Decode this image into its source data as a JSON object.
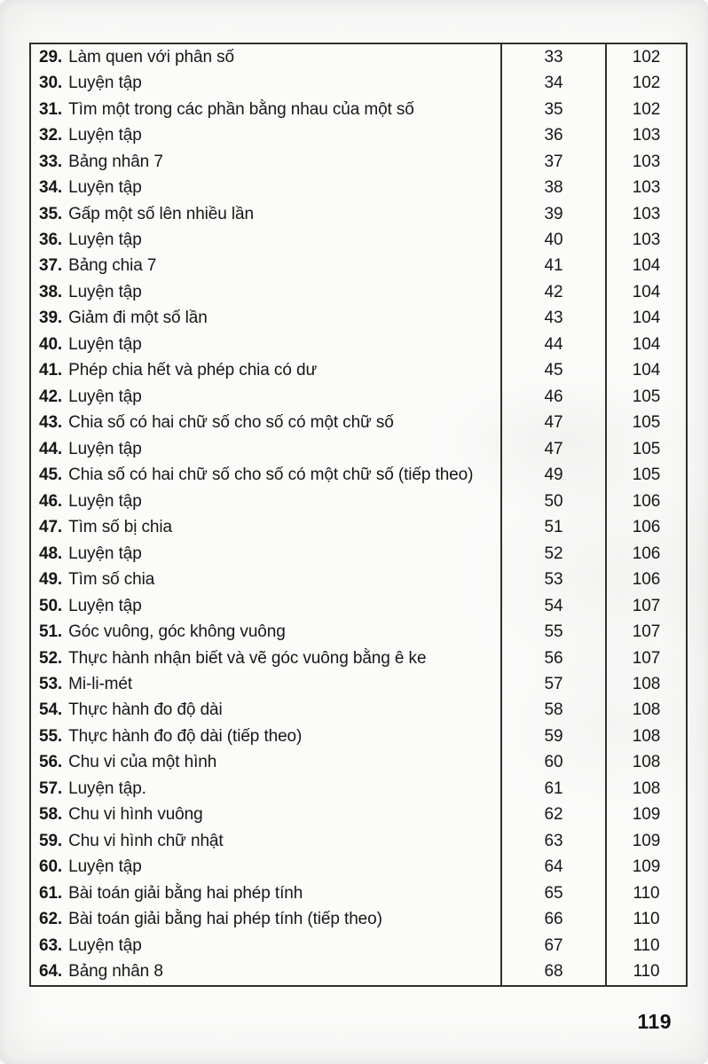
{
  "page": {
    "page_number": "119"
  },
  "table": {
    "rows": [
      {
        "num": "29.",
        "title": "Làm quen với phân số",
        "lesson_page": "33",
        "answer_page": "102"
      },
      {
        "num": "30.",
        "title": "Luyện tập",
        "lesson_page": "34",
        "answer_page": "102"
      },
      {
        "num": "31.",
        "title": "Tìm một trong các phần bằng nhau của một số",
        "lesson_page": "35",
        "answer_page": "102"
      },
      {
        "num": "32.",
        "title": "Luyện tập",
        "lesson_page": "36",
        "answer_page": "103"
      },
      {
        "num": "33.",
        "title": "Bảng nhân 7",
        "lesson_page": "37",
        "answer_page": "103"
      },
      {
        "num": "34.",
        "title": "Luyện tập",
        "lesson_page": "38",
        "answer_page": "103"
      },
      {
        "num": "35.",
        "title": "Gấp một số lên nhiều lần",
        "lesson_page": "39",
        "answer_page": "103"
      },
      {
        "num": "36.",
        "title": "Luyện tập",
        "lesson_page": "40",
        "answer_page": "103"
      },
      {
        "num": "37.",
        "title": "Bảng chia 7",
        "lesson_page": "41",
        "answer_page": "104"
      },
      {
        "num": "38.",
        "title": "Luyện tập",
        "lesson_page": "42",
        "answer_page": "104"
      },
      {
        "num": "39.",
        "title": "Giảm đi một số lần",
        "lesson_page": "43",
        "answer_page": "104"
      },
      {
        "num": "40.",
        "title": "Luyện tập",
        "lesson_page": "44",
        "answer_page": "104"
      },
      {
        "num": "41.",
        "title": "Phép chia hết và phép chia có dư",
        "lesson_page": "45",
        "answer_page": "104"
      },
      {
        "num": "42.",
        "title": "Luyện tập",
        "lesson_page": "46",
        "answer_page": "105"
      },
      {
        "num": "43.",
        "title": "Chia số có hai chữ số cho số có một chữ số",
        "lesson_page": "47",
        "answer_page": "105"
      },
      {
        "num": "44.",
        "title": "Luyện tập",
        "lesson_page": "47",
        "answer_page": "105"
      },
      {
        "num": "45.",
        "title": "Chia số có hai chữ số cho số có một chữ số (tiếp theo)",
        "lesson_page": "49",
        "answer_page": "105"
      },
      {
        "num": "46.",
        "title": "Luyện tập",
        "lesson_page": "50",
        "answer_page": "106"
      },
      {
        "num": "47.",
        "title": "Tìm số bị chia",
        "lesson_page": "51",
        "answer_page": "106"
      },
      {
        "num": "48.",
        "title": "Luyện tập",
        "lesson_page": "52",
        "answer_page": "106"
      },
      {
        "num": "49.",
        "title": "Tìm số chia",
        "lesson_page": "53",
        "answer_page": "106"
      },
      {
        "num": "50.",
        "title": "Luyện tập",
        "lesson_page": "54",
        "answer_page": "107"
      },
      {
        "num": "51.",
        "title": "Góc vuông, góc không vuông",
        "lesson_page": "55",
        "answer_page": "107"
      },
      {
        "num": "52.",
        "title": "Thực hành nhận biết và vẽ góc vuông bằng ê ke",
        "lesson_page": "56",
        "answer_page": "107"
      },
      {
        "num": "53.",
        "title": "Mi-li-mét",
        "lesson_page": "57",
        "answer_page": "108"
      },
      {
        "num": "54.",
        "title": "Thực hành đo độ dài",
        "lesson_page": "58",
        "answer_page": "108"
      },
      {
        "num": "55.",
        "title": "Thực hành đo độ dài (tiếp theo)",
        "lesson_page": "59",
        "answer_page": "108"
      },
      {
        "num": "56.",
        "title": "Chu vi của một hình",
        "lesson_page": "60",
        "answer_page": "108"
      },
      {
        "num": "57.",
        "title": "Luyện tập.",
        "lesson_page": "61",
        "answer_page": "108"
      },
      {
        "num": "58.",
        "title": "Chu vi hình vuông",
        "lesson_page": "62",
        "answer_page": "109"
      },
      {
        "num": "59.",
        "title": "Chu vi hình chữ nhật",
        "lesson_page": "63",
        "answer_page": "109"
      },
      {
        "num": "60.",
        "title": "Luyện tập",
        "lesson_page": "64",
        "answer_page": "109"
      },
      {
        "num": "61.",
        "title": "Bài toán giải bằng hai phép tính",
        "lesson_page": "65",
        "answer_page": "110"
      },
      {
        "num": "62.",
        "title": "Bài toán giải bằng hai phép tính (tiếp theo)",
        "lesson_page": "66",
        "answer_page": "110"
      },
      {
        "num": "63.",
        "title": "Luyện tập",
        "lesson_page": "67",
        "answer_page": "110"
      },
      {
        "num": "64.",
        "title": "Bảng nhân 8",
        "lesson_page": "68",
        "answer_page": "110"
      }
    ]
  }
}
